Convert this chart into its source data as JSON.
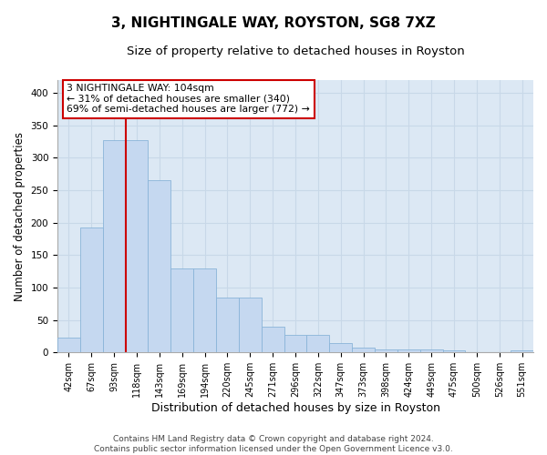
{
  "title": "3, NIGHTINGALE WAY, ROYSTON, SG8 7XZ",
  "subtitle": "Size of property relative to detached houses in Royston",
  "xlabel": "Distribution of detached houses by size in Royston",
  "ylabel": "Number of detached properties",
  "categories": [
    "42sqm",
    "67sqm",
    "93sqm",
    "118sqm",
    "143sqm",
    "169sqm",
    "194sqm",
    "220sqm",
    "245sqm",
    "271sqm",
    "296sqm",
    "322sqm",
    "347sqm",
    "373sqm",
    "398sqm",
    "424sqm",
    "449sqm",
    "475sqm",
    "500sqm",
    "526sqm",
    "551sqm"
  ],
  "values": [
    23,
    193,
    327,
    327,
    265,
    130,
    130,
    85,
    85,
    40,
    27,
    27,
    14,
    8,
    4,
    5,
    5,
    3,
    0,
    0,
    3
  ],
  "bar_color": "#c5d8f0",
  "bar_edge_color": "#8ab4d8",
  "property_line_x": 2.5,
  "property_line_color": "#cc0000",
  "annotation_line1": "3 NIGHTINGALE WAY: 104sqm",
  "annotation_line2": "← 31% of detached houses are smaller (340)",
  "annotation_line3": "69% of semi-detached houses are larger (772) →",
  "annotation_box_color": "#cc0000",
  "annotation_box_bg": "#ffffff",
  "footer_line1": "Contains HM Land Registry data © Crown copyright and database right 2024.",
  "footer_line2": "Contains public sector information licensed under the Open Government Licence v3.0.",
  "ylim": [
    0,
    420
  ],
  "yticks": [
    0,
    50,
    100,
    150,
    200,
    250,
    300,
    350,
    400
  ],
  "grid_color": "#c8d8e8",
  "background_color": "#dce8f4",
  "title_fontsize": 11,
  "subtitle_fontsize": 9.5,
  "tick_fontsize": 7,
  "ylabel_fontsize": 8.5,
  "xlabel_fontsize": 9,
  "annotation_fontsize": 7.8,
  "footer_fontsize": 6.5
}
